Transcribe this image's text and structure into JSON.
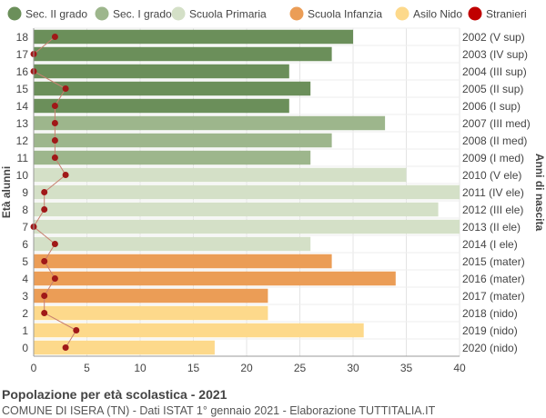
{
  "chart_data": {
    "type": "bar",
    "orientation": "horizontal",
    "title": "Popolazione per età scolastica - 2021",
    "subtitle": "COMUNE DI ISERA (TN) - Dati ISTAT 1° gennaio 2021 - Elaborazione TUTTITALIA.IT",
    "ylabel_left": "Età alunni",
    "ylabel_right": "Anni di nascita",
    "xlim": [
      0,
      40
    ],
    "x_ticks": [
      0,
      5,
      10,
      15,
      20,
      25,
      30,
      35,
      40
    ],
    "grid": true,
    "legend_position": "top",
    "legend": [
      {
        "name": "Sec. II grado",
        "color": "#6b8f5a"
      },
      {
        "name": "Sec. I grado",
        "color": "#9db68c"
      },
      {
        "name": "Scuola Primaria",
        "color": "#d4e0c7"
      },
      {
        "name": "Scuola Infanzia",
        "color": "#eb9d56"
      },
      {
        "name": "Asilo Nido",
        "color": "#fdd98b"
      },
      {
        "name": "Stranieri",
        "color": "#c00000",
        "marker": "dot"
      }
    ],
    "rows": [
      {
        "age": "18",
        "birth": "2002 (V sup)",
        "value": 30,
        "stranieri": 2,
        "group": 0
      },
      {
        "age": "17",
        "birth": "2003 (IV sup)",
        "value": 28,
        "stranieri": 0,
        "group": 0
      },
      {
        "age": "16",
        "birth": "2004 (III sup)",
        "value": 24,
        "stranieri": 0,
        "group": 0
      },
      {
        "age": "15",
        "birth": "2005 (II sup)",
        "value": 26,
        "stranieri": 3,
        "group": 0
      },
      {
        "age": "14",
        "birth": "2006 (I sup)",
        "value": 24,
        "stranieri": 2,
        "group": 0
      },
      {
        "age": "13",
        "birth": "2007 (III med)",
        "value": 33,
        "stranieri": 2,
        "group": 1
      },
      {
        "age": "12",
        "birth": "2008 (II med)",
        "value": 28,
        "stranieri": 2,
        "group": 1
      },
      {
        "age": "11",
        "birth": "2009 (I med)",
        "value": 26,
        "stranieri": 2,
        "group": 1
      },
      {
        "age": "10",
        "birth": "2010 (V ele)",
        "value": 35,
        "stranieri": 3,
        "group": 2
      },
      {
        "age": "9",
        "birth": "2011 (IV ele)",
        "value": 40,
        "stranieri": 1,
        "group": 2
      },
      {
        "age": "8",
        "birth": "2012 (III ele)",
        "value": 38,
        "stranieri": 1,
        "group": 2
      },
      {
        "age": "7",
        "birth": "2013 (II ele)",
        "value": 40,
        "stranieri": 0,
        "group": 2
      },
      {
        "age": "6",
        "birth": "2014 (I ele)",
        "value": 26,
        "stranieri": 2,
        "group": 2
      },
      {
        "age": "5",
        "birth": "2015 (mater)",
        "value": 28,
        "stranieri": 1,
        "group": 3
      },
      {
        "age": "4",
        "birth": "2016 (mater)",
        "value": 34,
        "stranieri": 2,
        "group": 3
      },
      {
        "age": "3",
        "birth": "2017 (mater)",
        "value": 22,
        "stranieri": 1,
        "group": 3
      },
      {
        "age": "2",
        "birth": "2018 (nido)",
        "value": 22,
        "stranieri": 1,
        "group": 4
      },
      {
        "age": "1",
        "birth": "2019 (nido)",
        "value": 31,
        "stranieri": 4,
        "group": 4
      },
      {
        "age": "0",
        "birth": "2020 (nido)",
        "value": 17,
        "stranieri": 3,
        "group": 4
      }
    ]
  }
}
